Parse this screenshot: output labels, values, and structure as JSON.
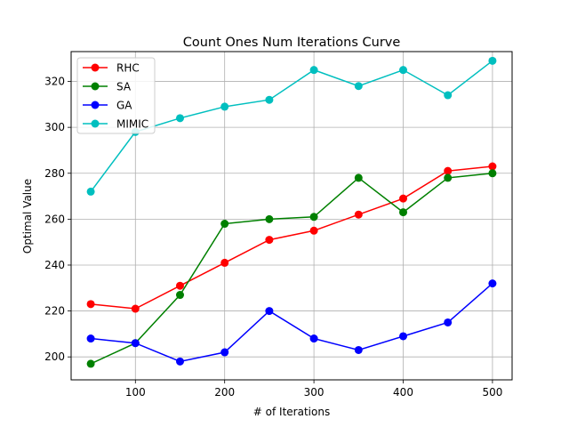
{
  "chart_data": {
    "type": "line",
    "title": "Count Ones Num Iterations Curve",
    "xlabel": "# of Iterations",
    "ylabel": "Optimal Value",
    "x": [
      50,
      100,
      150,
      200,
      250,
      300,
      350,
      400,
      450,
      500
    ],
    "xlim": [
      28,
      522
    ],
    "ylim": [
      190,
      333
    ],
    "xticks": [
      100,
      200,
      300,
      400,
      500
    ],
    "yticks": [
      200,
      220,
      240,
      260,
      280,
      300,
      320
    ],
    "grid": true,
    "legend": "top-left",
    "series": [
      {
        "name": "RHC",
        "color": "#ff0000",
        "values": [
          223,
          221,
          231,
          241,
          251,
          255,
          262,
          269,
          281,
          283
        ]
      },
      {
        "name": "SA",
        "color": "#008000",
        "values": [
          197,
          206,
          227,
          258,
          260,
          261,
          278,
          263,
          278,
          280
        ]
      },
      {
        "name": "GA",
        "color": "#0000ff",
        "values": [
          208,
          206,
          198,
          202,
          220,
          208,
          203,
          209,
          215,
          232
        ]
      },
      {
        "name": "MIMIC",
        "color": "#00bfbf",
        "values": [
          272,
          298,
          304,
          309,
          312,
          325,
          318,
          325,
          314,
          329
        ]
      }
    ]
  }
}
